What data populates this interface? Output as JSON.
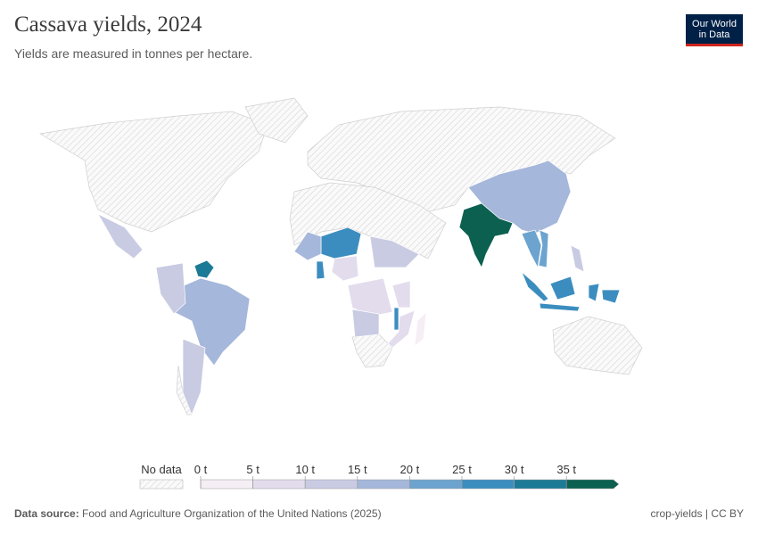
{
  "chart_data": {
    "type": "choropleth",
    "title": "Cassava yields, 2024",
    "subtitle": "Yields are measured in tonnes per hectare.",
    "values": [
      37,
      34,
      18,
      16,
      27,
      24,
      22,
      26,
      17,
      27,
      8,
      7,
      11,
      9,
      26,
      5,
      4,
      10,
      12,
      13,
      10,
      12
    ],
    "legend": {
      "no_data": "No data",
      "ticks": [
        {
          "value": 0,
          "label": "0 t"
        },
        {
          "value": 5,
          "label": "5 t"
        },
        {
          "value": 10,
          "label": "10 t"
        },
        {
          "value": 15,
          "label": "15 t"
        },
        {
          "value": 20,
          "label": "20 t"
        },
        {
          "value": 25,
          "label": "25 t"
        },
        {
          "value": 30,
          "label": "30 t"
        },
        {
          "value": 35,
          "label": "35 t"
        }
      ],
      "colors": [
        "#f5eef5",
        "#e3dced",
        "#c9cbe3",
        "#a5b7da",
        "#6ca4cf",
        "#3b8dbf",
        "#1b7a96",
        "#0b6050"
      ]
    }
  },
  "logo": [
    "Our World",
    "in Data"
  ],
  "footer": {
    "source_label": "Data source:",
    "source": "Food and Agriculture Organization of the United Nations (2025)",
    "license": "crop-yields | CC BY"
  }
}
